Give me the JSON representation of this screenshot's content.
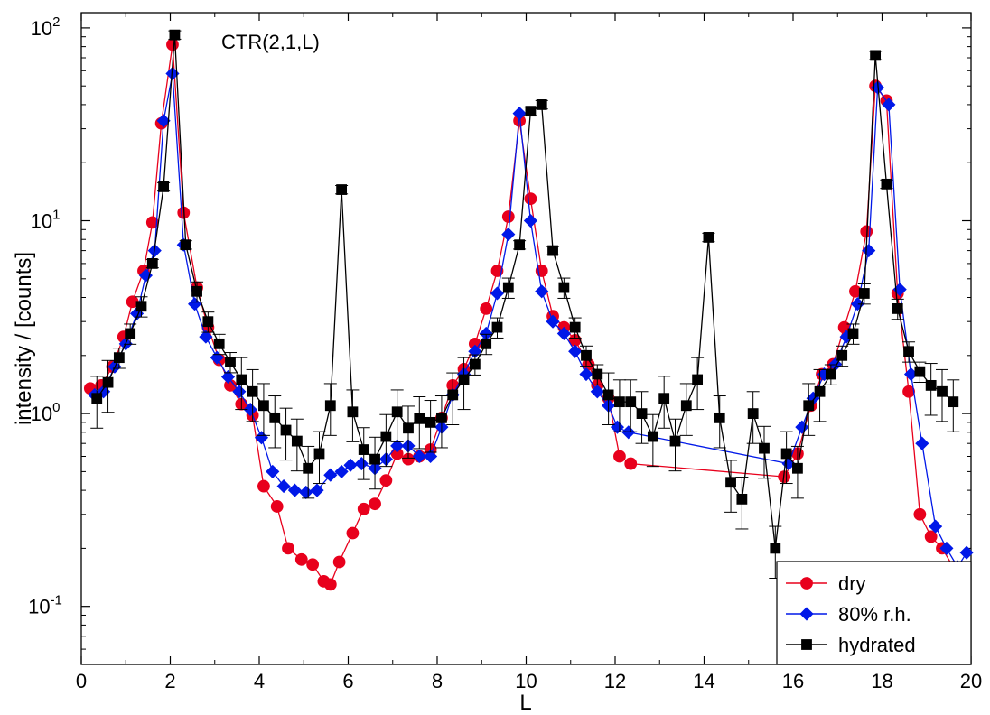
{
  "chart_data": {
    "type": "line",
    "title": "",
    "annotation": "CTR(2,1,L)",
    "xlabel": "L",
    "ylabel": "intensity / [counts]",
    "xlim": [
      0,
      20
    ],
    "ylim": [
      0.05,
      120
    ],
    "yscale": "log",
    "x_ticks": [
      "0",
      "2",
      "4",
      "6",
      "8",
      "10",
      "12",
      "14",
      "16",
      "18",
      "20"
    ],
    "y_ticks": [
      {
        "value": 100,
        "base": "10",
        "exp": "2"
      },
      {
        "value": 10,
        "base": "10",
        "exp": "1"
      },
      {
        "value": 1,
        "base": "10",
        "exp": "0"
      },
      {
        "value": 0.1,
        "base": "10",
        "exp": "-1"
      }
    ],
    "grid": false,
    "legend_position": "bottom-right",
    "series": [
      {
        "name": "dry",
        "color": "#e8001c",
        "marker": "circle",
        "x": [
          0.2,
          0.45,
          0.7,
          0.95,
          1.15,
          1.4,
          1.6,
          1.8,
          2.05,
          2.3,
          2.6,
          2.85,
          3.1,
          3.35,
          3.6,
          3.85,
          4.1,
          4.4,
          4.65,
          4.95,
          5.2,
          5.45,
          5.6,
          5.8,
          6.1,
          6.35,
          6.6,
          6.85,
          7.1,
          7.35,
          7.6,
          7.85,
          8.1,
          8.35,
          8.6,
          8.85,
          9.1,
          9.35,
          9.6,
          9.85,
          10.1,
          10.35,
          10.6,
          10.85,
          11.1,
          11.4,
          11.6,
          11.85,
          12.1,
          12.35,
          15.8,
          16.1,
          16.4,
          16.65,
          16.9,
          17.15,
          17.4,
          17.65,
          17.85,
          18.1,
          18.35,
          18.6,
          18.85,
          19.1,
          19.35,
          19.6
        ],
        "y": [
          1.35,
          1.4,
          1.75,
          2.5,
          3.8,
          5.5,
          9.8,
          32,
          82,
          11,
          4.5,
          2.8,
          1.9,
          1.4,
          1.12,
          0.98,
          0.42,
          0.33,
          0.2,
          0.175,
          0.165,
          0.135,
          0.13,
          0.17,
          0.24,
          0.32,
          0.34,
          0.45,
          0.62,
          0.58,
          0.6,
          0.65,
          0.95,
          1.4,
          1.7,
          2.3,
          3.5,
          5.5,
          10.5,
          33,
          13,
          5.5,
          3.2,
          2.8,
          2.4,
          1.8,
          1.4,
          1.2,
          0.6,
          0.55,
          0.47,
          0.62,
          1.1,
          1.6,
          1.8,
          2.8,
          4.3,
          8.8,
          50,
          42,
          4.2,
          1.3,
          0.3,
          0.23,
          0.2,
          0.16
        ]
      },
      {
        "name": "80% r.h.",
        "color": "#0018e8",
        "marker": "diamond",
        "x": [
          0.3,
          0.5,
          0.75,
          1.0,
          1.25,
          1.45,
          1.65,
          1.85,
          2.05,
          2.3,
          2.55,
          2.8,
          3.05,
          3.3,
          3.55,
          3.8,
          4.05,
          4.3,
          4.55,
          4.8,
          5.05,
          5.3,
          5.6,
          5.85,
          6.05,
          6.3,
          6.6,
          6.85,
          7.1,
          7.35,
          7.6,
          7.85,
          8.1,
          8.35,
          8.6,
          8.85,
          9.1,
          9.35,
          9.6,
          9.85,
          10.1,
          10.35,
          10.6,
          10.85,
          11.1,
          11.35,
          11.6,
          11.85,
          12.05,
          12.3,
          15.9,
          16.2,
          16.45,
          16.7,
          16.95,
          17.2,
          17.45,
          17.7,
          17.9,
          18.15,
          18.4,
          18.65,
          18.9,
          19.2,
          19.45,
          19.7,
          19.9
        ],
        "y": [
          1.25,
          1.3,
          1.75,
          2.3,
          3.3,
          5.2,
          7.0,
          33,
          58,
          7.5,
          3.7,
          2.5,
          1.95,
          1.55,
          1.3,
          1.05,
          0.75,
          0.5,
          0.42,
          0.4,
          0.39,
          0.4,
          0.48,
          0.5,
          0.54,
          0.55,
          0.52,
          0.58,
          0.68,
          0.68,
          0.6,
          0.6,
          0.85,
          1.25,
          1.6,
          2.1,
          2.6,
          4.2,
          8.5,
          36,
          10,
          4.3,
          3.0,
          2.6,
          2.1,
          1.6,
          1.3,
          1.1,
          0.85,
          0.8,
          0.55,
          0.85,
          1.2,
          1.6,
          1.8,
          2.5,
          3.7,
          7.0,
          49,
          40,
          4.4,
          1.6,
          0.7,
          0.26,
          0.2,
          0.16,
          0.19
        ]
      },
      {
        "name": "hydrated",
        "color": "#000000",
        "marker": "square",
        "x": [
          0.35,
          0.6,
          0.85,
          1.1,
          1.35,
          1.6,
          1.85,
          2.1,
          2.35,
          2.6,
          2.85,
          3.1,
          3.35,
          3.6,
          3.85,
          4.1,
          4.35,
          4.6,
          4.85,
          5.1,
          5.35,
          5.6,
          5.85,
          6.1,
          6.35,
          6.6,
          6.85,
          7.1,
          7.35,
          7.6,
          7.85,
          8.1,
          8.35,
          8.6,
          8.85,
          9.1,
          9.35,
          9.6,
          9.85,
          10.1,
          10.35,
          10.6,
          10.85,
          11.1,
          11.35,
          11.6,
          11.85,
          12.1,
          12.35,
          12.6,
          12.85,
          13.1,
          13.35,
          13.6,
          13.85,
          14.1,
          14.35,
          14.6,
          14.85,
          15.1,
          15.35,
          15.6,
          15.85,
          16.1,
          16.35,
          16.6,
          16.85,
          17.1,
          17.35,
          17.6,
          17.85,
          18.1,
          18.35,
          18.6,
          18.85,
          19.1,
          19.35,
          19.6
        ],
        "y": [
          1.2,
          1.45,
          1.95,
          2.6,
          3.6,
          6.0,
          15,
          92,
          7.5,
          4.3,
          3.0,
          2.3,
          1.85,
          1.5,
          1.3,
          1.1,
          0.95,
          0.82,
          0.72,
          0.52,
          0.62,
          1.1,
          14.5,
          1.02,
          0.65,
          0.58,
          0.76,
          1.02,
          0.84,
          0.94,
          0.9,
          0.95,
          1.25,
          1.5,
          1.8,
          2.3,
          2.8,
          4.5,
          7.5,
          37,
          40,
          7.0,
          4.5,
          2.8,
          2.0,
          1.6,
          1.25,
          1.15,
          1.15,
          1.0,
          0.76,
          1.2,
          0.72,
          1.1,
          1.5,
          8.2,
          0.95,
          0.44,
          0.36,
          1.0,
          0.66,
          0.2,
          0.62,
          0.52,
          1.1,
          1.3,
          1.6,
          2.0,
          2.6,
          4.2,
          72,
          15.5,
          3.5,
          2.1,
          1.65,
          1.4,
          1.3,
          1.15
        ]
      }
    ]
  }
}
